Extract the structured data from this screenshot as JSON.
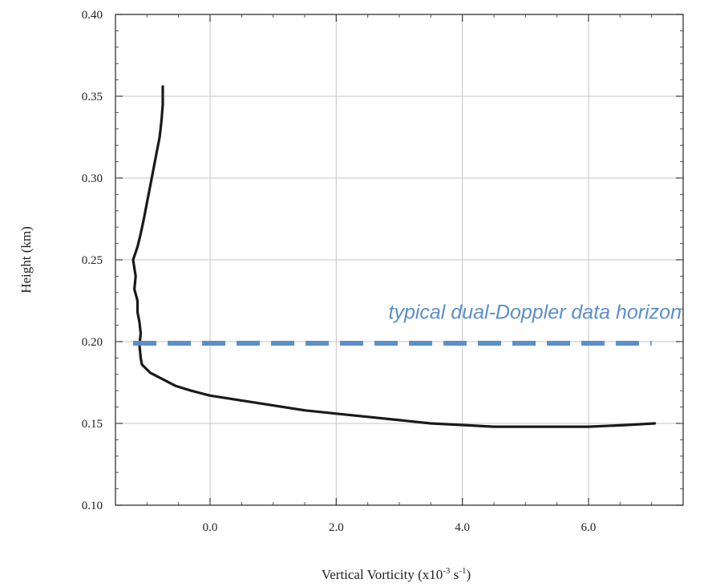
{
  "chart_data": {
    "type": "line",
    "title": "",
    "xlabel": "Vertical Vorticity (x10",
    "xlabel_exp1": "-3",
    "xlabel_mid": " s",
    "xlabel_exp2": "-1",
    "xlabel_end": ")",
    "ylabel": "Height (km)",
    "xlim": [
      -1.5,
      7.5
    ],
    "ylim": [
      0.1,
      0.4
    ],
    "x_ticks": [
      0.0,
      2.0,
      4.0,
      6.0
    ],
    "x_tick_labels": [
      "0.0",
      "2.0",
      "4.0",
      "6.0"
    ],
    "y_ticks": [
      0.1,
      0.15,
      0.2,
      0.25,
      0.3,
      0.35,
      0.4
    ],
    "y_tick_labels": [
      "0.10",
      "0.15",
      "0.20",
      "0.25",
      "0.30",
      "0.35",
      "0.40"
    ],
    "grid": true,
    "line_color": "#1a1a1a",
    "series": [
      {
        "x": [
          7.05,
          6.6,
          6.0,
          5.5,
          5.0,
          4.5,
          4.0,
          3.5,
          3.0,
          2.5,
          2.0,
          1.5,
          1.0,
          0.5,
          0.0,
          -0.3,
          -0.55,
          -0.75,
          -0.95,
          -1.08,
          -1.1,
          -1.12,
          -1.1,
          -1.12,
          -1.15,
          -1.15,
          -1.2,
          -1.18,
          -1.22,
          -1.15,
          -1.1,
          -1.05,
          -1.0,
          -0.95,
          -0.9,
          -0.85,
          -0.8,
          -0.77,
          -0.75,
          -0.75
        ],
        "y": [
          0.15,
          0.149,
          0.148,
          0.148,
          0.148,
          0.148,
          0.149,
          0.15,
          0.152,
          0.154,
          0.156,
          0.158,
          0.161,
          0.164,
          0.167,
          0.17,
          0.173,
          0.177,
          0.181,
          0.186,
          0.19,
          0.198,
          0.205,
          0.212,
          0.218,
          0.225,
          0.232,
          0.24,
          0.25,
          0.258,
          0.266,
          0.275,
          0.285,
          0.295,
          0.305,
          0.315,
          0.325,
          0.335,
          0.345,
          0.356
        ]
      }
    ],
    "reference_line": {
      "y": 0.199,
      "x_start": -1.22,
      "x_end": 7.0,
      "color": "#5b8fc9",
      "style": "dashed"
    },
    "annotation": {
      "text": "typical dual-Doppler data horizon",
      "x": 7.5,
      "y": 0.215,
      "color": "#5b8fc9"
    }
  }
}
